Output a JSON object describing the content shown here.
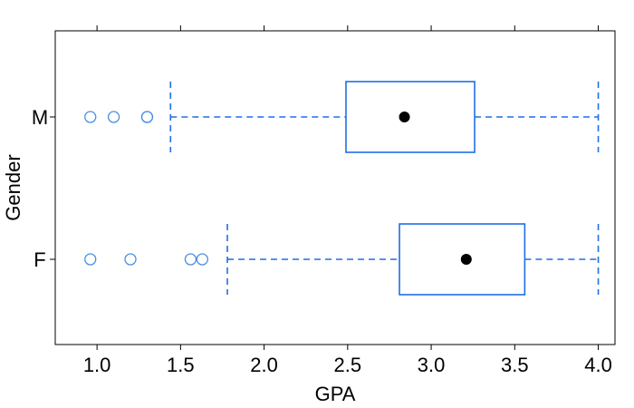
{
  "chart_data": {
    "type": "boxplot",
    "orientation": "horizontal",
    "title": "",
    "xlabel": "GPA",
    "ylabel": "Gender",
    "xlim": [
      0.75,
      4.1
    ],
    "x_ticks": [
      1.0,
      1.5,
      2.0,
      2.5,
      3.0,
      3.5,
      4.0
    ],
    "x_tick_labels": [
      "1.0",
      "1.5",
      "2.0",
      "2.5",
      "3.0",
      "3.5",
      "4.0"
    ],
    "categories": [
      "M",
      "F"
    ],
    "grid": false,
    "legend": "none",
    "colors": {
      "box": "#1f6fe5",
      "outlier": "#4a90e2",
      "median_dot": "#000000",
      "frame": "#000000"
    },
    "groups": [
      {
        "label": "M",
        "whisker_low": 1.44,
        "q1": 2.49,
        "median": 2.84,
        "q3": 3.26,
        "whisker_high": 4.0,
        "outliers": [
          0.96,
          1.1,
          1.3,
          1.3
        ]
      },
      {
        "label": "F",
        "whisker_low": 1.78,
        "q1": 2.81,
        "median": 3.21,
        "q3": 3.56,
        "whisker_high": 4.0,
        "outliers": [
          0.96,
          1.2,
          1.56,
          1.63
        ]
      }
    ]
  }
}
